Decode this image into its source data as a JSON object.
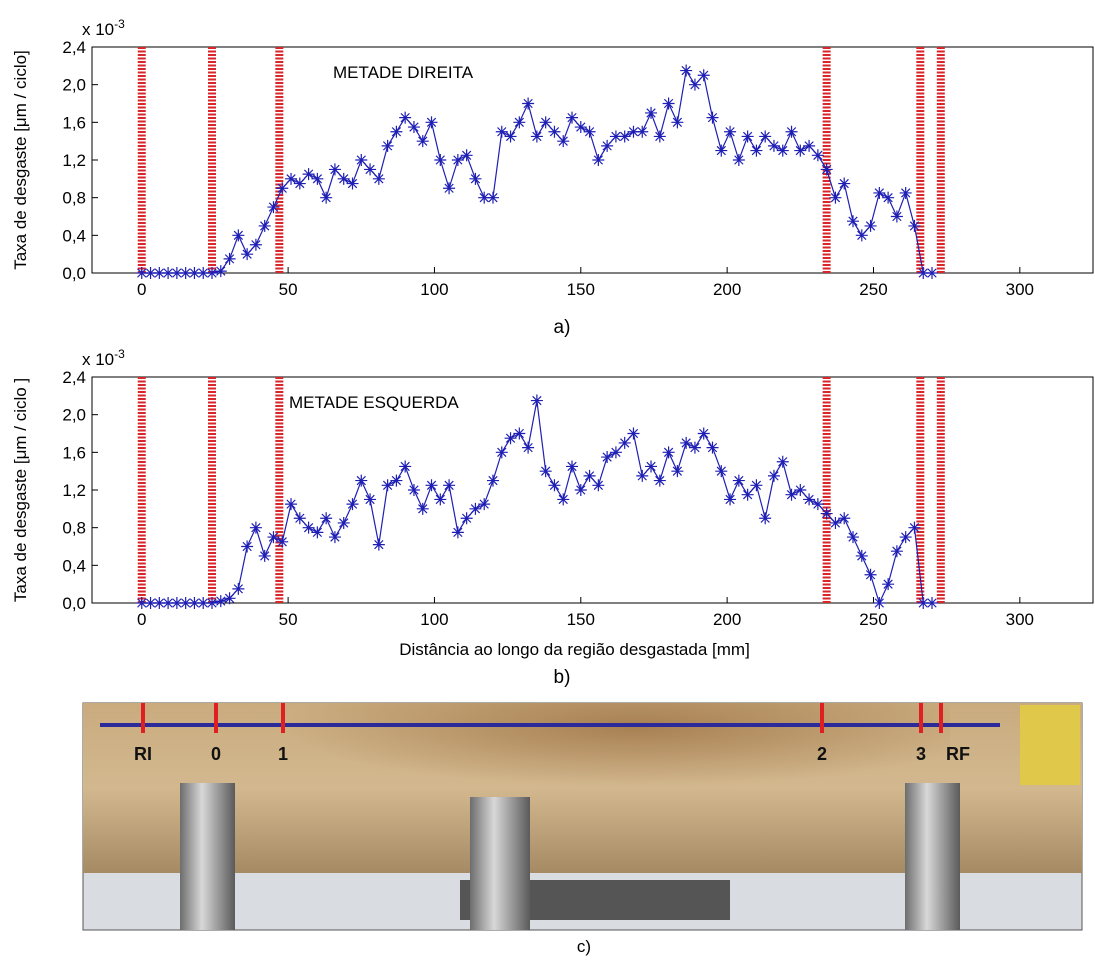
{
  "chart_data": [
    {
      "type": "line",
      "caption": "a)",
      "annotation": "METADE DIREITA",
      "ylabel": "Taxa de desgaste [μm / ciclo]",
      "y_scale_label": "x 10",
      "y_scale_exponent": "-3",
      "xlim": [
        -17,
        325
      ],
      "xticks": [
        0,
        50,
        100,
        150,
        200,
        250,
        300
      ],
      "ylim": [
        0,
        2.4
      ],
      "yticks": [
        {
          "value": 0,
          "label": "0,0"
        },
        {
          "value": 0.4,
          "label": "0,4"
        },
        {
          "value": 0.8,
          "label": "0,8"
        },
        {
          "value": 1.2,
          "label": "1,2"
        },
        {
          "value": 1.6,
          "label": "1,6"
        },
        {
          "value": 2.0,
          "label": "2,0"
        },
        {
          "value": 2.4,
          "label": "2,4"
        }
      ],
      "vlines": [
        0,
        24,
        47,
        234,
        266,
        273
      ],
      "vline_color": "#d9262b",
      "x": [
        0,
        3,
        6,
        9,
        12,
        15,
        18,
        21,
        24,
        27,
        30,
        33,
        36,
        39,
        42,
        45,
        48,
        51,
        54,
        57,
        60,
        63,
        66,
        69,
        72,
        75,
        78,
        81,
        84,
        87,
        90,
        93,
        96,
        99,
        102,
        105,
        108,
        111,
        114,
        117,
        120,
        123,
        126,
        129,
        132,
        135,
        138,
        141,
        144,
        147,
        150,
        153,
        156,
        159,
        162,
        165,
        168,
        171,
        174,
        177,
        180,
        183,
        186,
        189,
        192,
        195,
        198,
        201,
        204,
        207,
        210,
        213,
        216,
        219,
        222,
        225,
        228,
        231,
        234,
        237,
        240,
        243,
        246,
        249,
        252,
        255,
        258,
        261,
        264,
        267,
        270
      ],
      "series": [
        {
          "color": "#1f1fb4",
          "values": [
            0,
            0,
            0,
            0,
            0,
            0,
            0,
            0,
            0,
            0.02,
            0.15,
            0.4,
            0.2,
            0.3,
            0.5,
            0.7,
            0.9,
            1.0,
            0.95,
            1.05,
            1.0,
            0.8,
            1.1,
            1.0,
            0.95,
            1.2,
            1.1,
            1.0,
            1.35,
            1.5,
            1.65,
            1.55,
            1.4,
            1.6,
            1.2,
            0.9,
            1.2,
            1.25,
            1.0,
            0.8,
            0.8,
            1.5,
            1.45,
            1.6,
            1.8,
            1.45,
            1.6,
            1.5,
            1.4,
            1.65,
            1.55,
            1.5,
            1.2,
            1.35,
            1.45,
            1.45,
            1.5,
            1.5,
            1.7,
            1.45,
            1.8,
            1.6,
            2.15,
            2.0,
            2.1,
            1.65,
            1.3,
            1.5,
            1.2,
            1.45,
            1.3,
            1.45,
            1.35,
            1.3,
            1.5,
            1.3,
            1.35,
            1.25,
            1.1,
            0.8,
            0.95,
            0.55,
            0.4,
            0.5,
            0.85,
            0.8,
            0.6,
            0.85,
            0.5,
            0,
            0
          ]
        }
      ]
    },
    {
      "type": "line",
      "caption": "b)",
      "annotation": "METADE ESQUERDA",
      "xlabel": "Distância ao longo da região desgastada [mm]",
      "ylabel": "Taxa de desgaste [μm / ciclo ]",
      "y_scale_label": "x 10",
      "y_scale_exponent": "-3",
      "xlim": [
        -17,
        325
      ],
      "xticks": [
        0,
        50,
        100,
        150,
        200,
        250,
        300
      ],
      "ylim": [
        0,
        2.4
      ],
      "yticks": [
        {
          "value": 0,
          "label": "0,0"
        },
        {
          "value": 0.4,
          "label": "0,4"
        },
        {
          "value": 0.8,
          "label": "0,8"
        },
        {
          "value": 1.2,
          "label": "1,2"
        },
        {
          "value": 1.6,
          "label": "1,6"
        },
        {
          "value": 2.0,
          "label": "2,0"
        },
        {
          "value": 2.4,
          "label": "2,4"
        }
      ],
      "vlines": [
        0,
        24,
        47,
        234,
        266,
        273
      ],
      "vline_color": "#d9262b",
      "x": [
        0,
        3,
        6,
        9,
        12,
        15,
        18,
        21,
        24,
        27,
        30,
        33,
        36,
        39,
        42,
        45,
        48,
        51,
        54,
        57,
        60,
        63,
        66,
        69,
        72,
        75,
        78,
        81,
        84,
        87,
        90,
        93,
        96,
        99,
        102,
        105,
        108,
        111,
        114,
        117,
        120,
        123,
        126,
        129,
        132,
        135,
        138,
        141,
        144,
        147,
        150,
        153,
        156,
        159,
        162,
        165,
        168,
        171,
        174,
        177,
        180,
        183,
        186,
        189,
        192,
        195,
        198,
        201,
        204,
        207,
        210,
        213,
        216,
        219,
        222,
        225,
        228,
        231,
        234,
        237,
        240,
        243,
        246,
        249,
        252,
        255,
        258,
        261,
        264,
        267,
        270
      ],
      "series": [
        {
          "color": "#1f1fb4",
          "values": [
            0,
            0,
            0,
            0,
            0,
            0,
            0,
            0,
            0,
            0.02,
            0.05,
            0.15,
            0.6,
            0.8,
            0.5,
            0.7,
            0.65,
            1.05,
            0.9,
            0.8,
            0.75,
            0.9,
            0.7,
            0.85,
            1.05,
            1.3,
            1.1,
            0.62,
            1.25,
            1.3,
            1.45,
            1.2,
            1.0,
            1.25,
            1.1,
            1.25,
            0.75,
            0.9,
            1.0,
            1.05,
            1.3,
            1.6,
            1.75,
            1.8,
            1.65,
            2.15,
            1.4,
            1.25,
            1.1,
            1.45,
            1.2,
            1.35,
            1.25,
            1.55,
            1.6,
            1.7,
            1.8,
            1.35,
            1.45,
            1.3,
            1.6,
            1.4,
            1.7,
            1.65,
            1.8,
            1.65,
            1.4,
            1.1,
            1.3,
            1.15,
            1.25,
            0.9,
            1.35,
            1.5,
            1.15,
            1.2,
            1.1,
            1.05,
            0.95,
            0.85,
            0.9,
            0.7,
            0.5,
            0.3,
            0,
            0.2,
            0.55,
            0.7,
            0.8,
            0,
            0
          ]
        }
      ]
    }
  ],
  "photo": {
    "labels": [
      "RI",
      "0",
      "1",
      "2",
      "3",
      "RF"
    ],
    "caption": "c)"
  }
}
